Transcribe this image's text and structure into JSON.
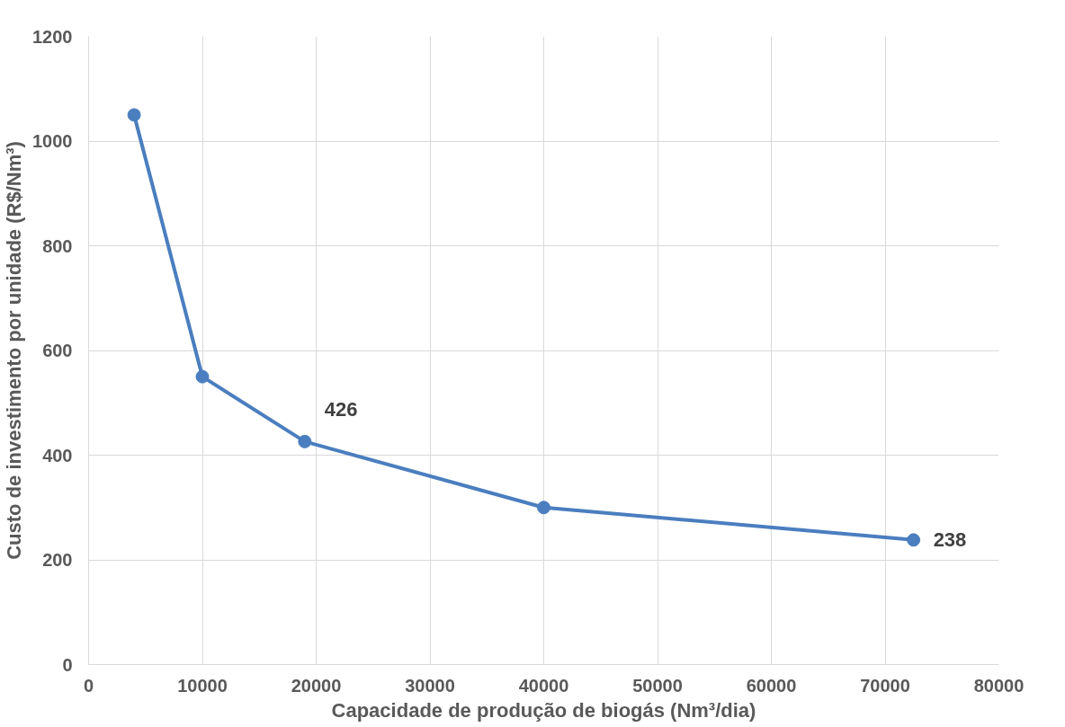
{
  "chart_data": {
    "type": "line",
    "xlabel": "Capacidade de produção de biogás (Nm³/dia)",
    "ylabel": "Custo de investimento por unidade (R$/Nm³)",
    "x": [
      4000,
      10000,
      19000,
      40000,
      72500
    ],
    "series": [
      {
        "color": "#4a7ebf",
        "values": [
          1050,
          550,
          426,
          300,
          238
        ],
        "value_labels": [
          null,
          null,
          "426",
          null,
          "238"
        ]
      }
    ],
    "xlim": [
      0,
      80000
    ],
    "xticks": [
      0,
      10000,
      20000,
      30000,
      40000,
      50000,
      60000,
      70000,
      80000
    ],
    "ylim": [
      0,
      1200
    ],
    "yticks": [
      0,
      200,
      400,
      600,
      800,
      1000,
      1200
    ],
    "grid": true,
    "marker": "circle",
    "line_style": "solid"
  }
}
